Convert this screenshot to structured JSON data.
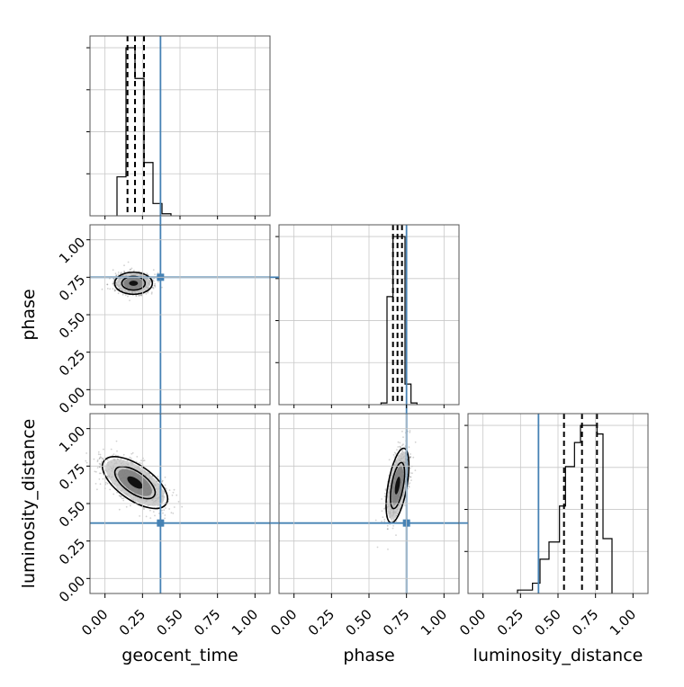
{
  "chart_data": {
    "type": "corner",
    "parameters": [
      "geocent_time",
      "phase",
      "luminosity_distance"
    ],
    "axis_labels": {
      "x": [
        "geocent_time",
        "phase",
        "luminosity_distance"
      ],
      "y": [
        "phase",
        "luminosity_distance"
      ]
    },
    "ticks": {
      "values": [
        0.0,
        0.25,
        0.5,
        0.75,
        1.0
      ],
      "labels": [
        "0.00",
        "0.25",
        "0.50",
        "0.75",
        "1.00"
      ]
    },
    "range": [
      -0.1,
      1.1
    ],
    "grid": true,
    "truths": {
      "geocent_time": 0.37,
      "phase": 0.75,
      "luminosity_distance": 0.37
    },
    "truth_color": "#4682b4",
    "quantiles": {
      "geocent_time": [
        0.15,
        0.2,
        0.26
      ],
      "phase": [
        0.66,
        0.69,
        0.72
      ],
      "luminosity_distance": [
        0.54,
        0.66,
        0.76
      ]
    },
    "histograms": {
      "geocent_time": {
        "bin_edges": [
          0.08,
          0.14,
          0.2,
          0.26,
          0.32,
          0.38,
          0.44
        ],
        "counts": [
          0.19,
          0.82,
          0.67,
          0.26,
          0.06,
          0.01
        ]
      },
      "phase": {
        "bin_edges": [
          0.58,
          0.62,
          0.66,
          0.7,
          0.74,
          0.78,
          0.82
        ],
        "counts": [
          0.01,
          0.63,
          0.98,
          0.98,
          0.12,
          0.01
        ]
      },
      "luminosity_distance": {
        "bin_edges": [
          0.23,
          0.33,
          0.38,
          0.44,
          0.51,
          0.55,
          0.61,
          0.65,
          0.71,
          0.76,
          0.8,
          0.86
        ],
        "counts": [
          0.02,
          0.06,
          0.2,
          0.3,
          0.51,
          0.74,
          0.88,
          0.98,
          0.98,
          0.93,
          0.32
        ]
      }
    },
    "contours": {
      "geocent_time_vs_phase": {
        "center": [
          0.19,
          0.71
        ],
        "spread": [
          0.06,
          0.035
        ],
        "angle_deg": 0
      },
      "geocent_time_vs_luminosity_distance": {
        "center": [
          0.2,
          0.64
        ],
        "spread": [
          0.055,
          0.12
        ],
        "angle_deg": -55
      },
      "phase_vs_luminosity_distance": {
        "center": [
          0.69,
          0.62
        ],
        "spread": [
          0.03,
          0.12
        ],
        "angle_deg": 10
      }
    }
  }
}
